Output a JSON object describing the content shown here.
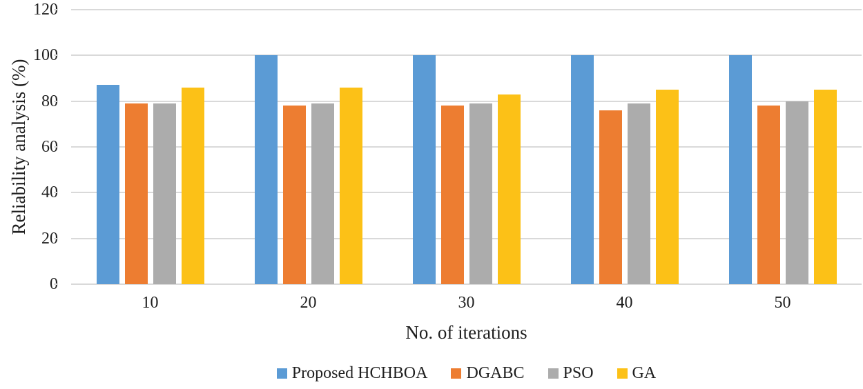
{
  "chart_data": {
    "type": "bar",
    "categories": [
      "10",
      "20",
      "30",
      "40",
      "50"
    ],
    "series": [
      {
        "name": "Proposed HCHBOA",
        "color": "#5B9BD5",
        "values": [
          87,
          100,
          100,
          100,
          100
        ]
      },
      {
        "name": "DGABC",
        "color": "#ED7D31",
        "values": [
          79,
          78,
          78,
          76,
          78
        ]
      },
      {
        "name": "PSO",
        "color": "#ACACAC",
        "values": [
          79,
          79,
          79,
          79,
          80
        ]
      },
      {
        "name": "GA",
        "color": "#FCC117",
        "values": [
          86,
          86,
          83,
          85,
          85
        ]
      }
    ],
    "title": "",
    "xlabel": "No. of iterations",
    "ylabel": "Reliability analysis (%)",
    "ylim": [
      0,
      120
    ],
    "yticks": [
      0,
      20,
      40,
      60,
      80,
      100,
      120
    ],
    "grid": true,
    "legend_position": "bottom",
    "gridline_color": "#D9D9D9",
    "text_color": "#1f1f1f"
  }
}
